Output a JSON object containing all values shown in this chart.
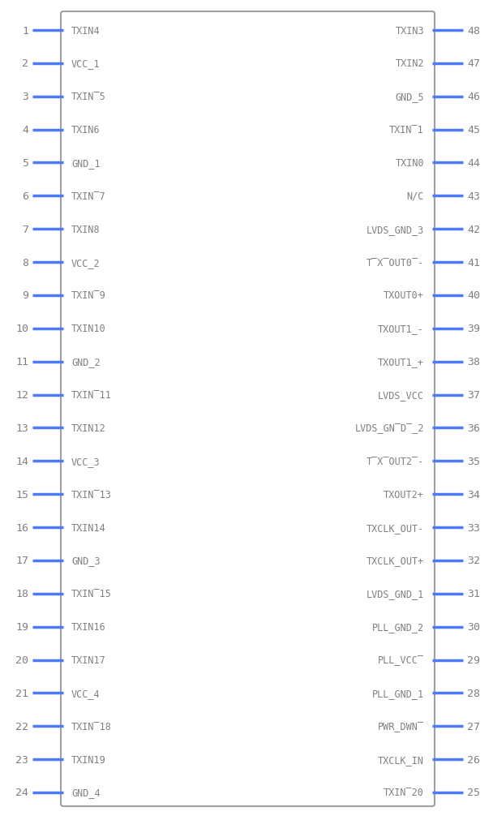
{
  "bg_color": "#ffffff",
  "border_color": "#a0a0a0",
  "pin_line_color": "#4d79ff",
  "text_color": "#808080",
  "left_pins": [
    {
      "num": 1,
      "name": "TXIN4"
    },
    {
      "num": 2,
      "name": "VCC_1"
    },
    {
      "num": 3,
      "name": "TXIN̅5"
    },
    {
      "num": 4,
      "name": "TXIN6"
    },
    {
      "num": 5,
      "name": "GND_1"
    },
    {
      "num": 6,
      "name": "TXIN̅7"
    },
    {
      "num": 7,
      "name": "TXIN8"
    },
    {
      "num": 8,
      "name": "VCC_2"
    },
    {
      "num": 9,
      "name": "TXIN̅9"
    },
    {
      "num": 10,
      "name": "TXIN10"
    },
    {
      "num": 11,
      "name": "GND_2"
    },
    {
      "num": 12,
      "name": "TXIN̅11"
    },
    {
      "num": 13,
      "name": "TXIN12"
    },
    {
      "num": 14,
      "name": "VCC_3"
    },
    {
      "num": 15,
      "name": "TXIN̅13"
    },
    {
      "num": 16,
      "name": "TXIN14"
    },
    {
      "num": 17,
      "name": "GND_3"
    },
    {
      "num": 18,
      "name": "TXIN̅15"
    },
    {
      "num": 19,
      "name": "TXIN16"
    },
    {
      "num": 20,
      "name": "TXIN17"
    },
    {
      "num": 21,
      "name": "VCC_4"
    },
    {
      "num": 22,
      "name": "TXIN̅18"
    },
    {
      "num": 23,
      "name": "TXIN19"
    },
    {
      "num": 24,
      "name": "GND_4"
    }
  ],
  "right_pins": [
    {
      "num": 48,
      "name": "TXIN3"
    },
    {
      "num": 47,
      "name": "TXIN2"
    },
    {
      "num": 46,
      "name": "GND_5"
    },
    {
      "num": 45,
      "name": "TXIN̅1"
    },
    {
      "num": 44,
      "name": "TXIN0"
    },
    {
      "num": 43,
      "name": "N/C"
    },
    {
      "num": 42,
      "name": "LVDS_GND_3"
    },
    {
      "num": 41,
      "name": "T̅X̅OUT0̅-"
    },
    {
      "num": 40,
      "name": "TXOUT0+"
    },
    {
      "num": 39,
      "name": "TXOUT1_-"
    },
    {
      "num": 38,
      "name": "TXOUT1_+"
    },
    {
      "num": 37,
      "name": "LVDS_VCC"
    },
    {
      "num": 36,
      "name": "LVDS_GN̅D̅_2"
    },
    {
      "num": 35,
      "name": "T̅X̅OUT2̅-"
    },
    {
      "num": 34,
      "name": "TXOUT2+"
    },
    {
      "num": 33,
      "name": "TXCLK_OUT-"
    },
    {
      "num": 32,
      "name": "TXCLK_OUT+"
    },
    {
      "num": 31,
      "name": "LVDS_GND_1"
    },
    {
      "num": 30,
      "name": "PLL_GND_2"
    },
    {
      "num": 29,
      "name": "PLL_VCC̅"
    },
    {
      "num": 28,
      "name": "PLL_GND_1"
    },
    {
      "num": 27,
      "name": "PWR_DWN̅"
    },
    {
      "num": 26,
      "name": "TXCLK_IN"
    },
    {
      "num": 25,
      "name": "TXIN̅20"
    }
  ]
}
